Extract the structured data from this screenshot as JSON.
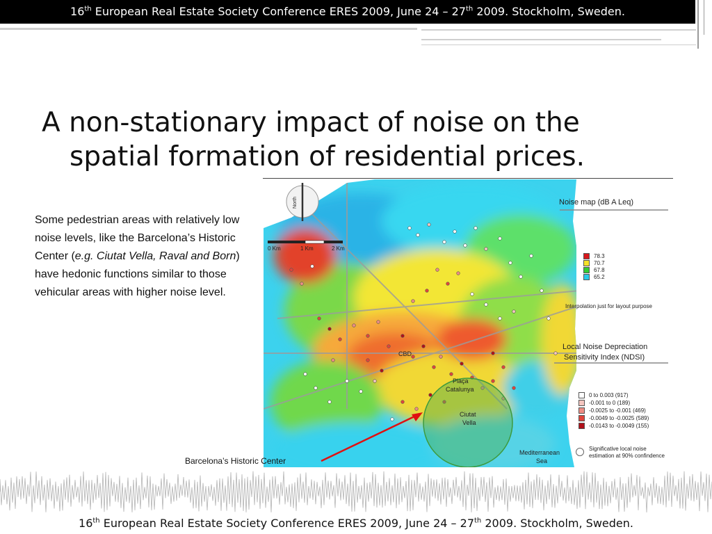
{
  "header": {
    "num": "16",
    "sup": "th",
    "text_a": " European Real Estate Society Conference ERES 2009, June 24 – 27",
    "sup2": "th",
    "text_b": " 2009. Stockholm, Sweden."
  },
  "title": {
    "line1": "A non-stationary impact of noise on the",
    "line2": "spatial formation of residential prices."
  },
  "body": {
    "part1": "Some pedestrian areas with relatively low noise levels, like the Barcelona’s Historic Center (",
    "italic": "e.g. Ciutat Vella, Raval and Born",
    "part2": ") have hedonic functions similar to those vehicular areas with higher noise level."
  },
  "map": {
    "north_label": "North",
    "scale": [
      "0 Km",
      "1 Km",
      "2 Km"
    ],
    "noise_title": "Noise map (dB A Leq)",
    "noise_legend": [
      {
        "label": "78.3",
        "color": "#d7191c"
      },
      {
        "label": "70.7",
        "color": "#f5e12a"
      },
      {
        "label": "67.8",
        "color": "#33cc33"
      },
      {
        "label": "65.2",
        "color": "#29c9e8"
      }
    ],
    "interp_note": "Interpolation just for layout purpose",
    "ndsi_title_1": "Local Noise Depreciation",
    "ndsi_title_2": "Sensitivity Index (NDSI)",
    "ndsi_legend": [
      {
        "label": "0          to  0.003    (917)",
        "color": "#ffffff"
      },
      {
        "label": "-0.001    to  0        (189)",
        "color": "#f4c6c0"
      },
      {
        "label": "-0.0025 to -0.001    (469)",
        "color": "#ee8d84"
      },
      {
        "label": "-0.0049 to -0.0025  (589)",
        "color": "#e0443b"
      },
      {
        "label": "-0.0143 to -0.0049  (155)",
        "color": "#b0101a"
      }
    ],
    "signif_1": "Significative local noise",
    "signif_2": "estimation at 90% confindence",
    "cbd": "CBD",
    "placa_1": "Plaça",
    "placa_2": "Catalunya",
    "ciutat_1": "Ciutat",
    "ciutat_2": "Vella",
    "sea_1": "Mediterranean",
    "sea_2": "Sea"
  },
  "caption": "Barcelona’s Historic Center",
  "colors": {
    "arrow": "#e01010",
    "historic_circle": "#4caf50"
  }
}
